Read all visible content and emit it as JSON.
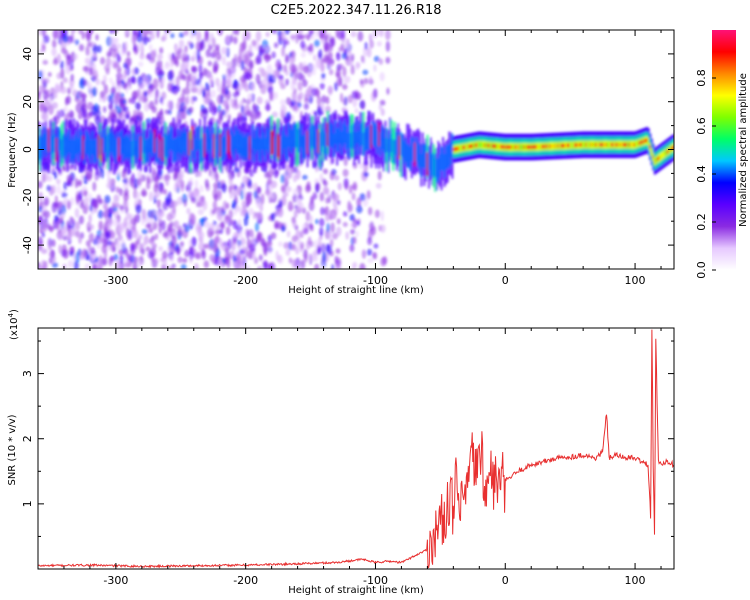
{
  "title": "C2E5.2022.347.11.26.R18",
  "chart_data": [
    {
      "type": "heatmap",
      "xlabel": "Height of straight line (km)",
      "ylabel": "Frequency (Hz)",
      "xlim": [
        -360,
        130
      ],
      "ylim": [
        -50,
        50
      ],
      "xticks": [
        -300,
        -200,
        -100,
        0,
        100
      ],
      "yticks": [
        -40,
        -20,
        0,
        20,
        40
      ],
      "colorbar": {
        "label": "Normalized spectral amplitude",
        "range": [
          0,
          1
        ],
        "ticks": [
          "0.0",
          "0.2",
          "0.4",
          "0.6",
          "0.8"
        ],
        "stops": [
          "#ffffff",
          "#e6c8ff",
          "#8a2be2",
          "#5a00ff",
          "#0000ff",
          "#00c8ff",
          "#00ff66",
          "#7fff00",
          "#ffff00",
          "#ff8800",
          "#ff0000",
          "#ff1177"
        ]
      },
      "ridge": {
        "x": [
          -360,
          -300,
          -250,
          -200,
          -150,
          -120,
          -100,
          -80,
          -60,
          -50,
          -40,
          -20,
          0,
          20,
          60,
          100,
          110,
          115,
          130
        ],
        "y": [
          2,
          1,
          2,
          2,
          4,
          5,
          4,
          0,
          -5,
          -7,
          0,
          2,
          1,
          1,
          2,
          2,
          4,
          -5,
          1
        ]
      }
    },
    {
      "type": "line",
      "xlabel": "Height of straight line (km)",
      "ylabel": "SNR (10 * v/v)",
      "scale_label": "(x10",
      "scale_exp": "4",
      "scale_close": ")",
      "xlim": [
        -360,
        130
      ],
      "ylim": [
        0,
        3.7
      ],
      "xticks": [
        -300,
        -200,
        -100,
        0,
        100
      ],
      "yticks": [
        1,
        2,
        3
      ],
      "color": "#e83030",
      "x": [
        -360,
        -320,
        -280,
        -240,
        -200,
        -160,
        -130,
        -110,
        -100,
        -90,
        -80,
        -70,
        -60,
        -55,
        -50,
        -45,
        -42,
        -40,
        -38,
        -35,
        -30,
        -25,
        -20,
        -18,
        -15,
        -12,
        -10,
        -5,
        0,
        10,
        20,
        30,
        40,
        50,
        60,
        70,
        75,
        78,
        80,
        85,
        90,
        100,
        105,
        110,
        112,
        113,
        114,
        115,
        116,
        118,
        120,
        125,
        130
      ],
      "y": [
        0.05,
        0.06,
        0.04,
        0.05,
        0.06,
        0.08,
        0.1,
        0.15,
        0.1,
        0.12,
        0.1,
        0.2,
        0.3,
        0.5,
        0.7,
        0.9,
        1.3,
        0.6,
        1.5,
        0.8,
        1.2,
        1.7,
        1.5,
        1.9,
        1.0,
        1.6,
        1.35,
        1.3,
        1.35,
        1.5,
        1.6,
        1.65,
        1.7,
        1.72,
        1.75,
        1.7,
        1.8,
        2.4,
        1.7,
        1.75,
        1.72,
        1.7,
        1.65,
        1.6,
        0.8,
        3.7,
        1.6,
        0.5,
        3.5,
        1.65,
        1.62,
        1.65,
        1.6
      ]
    }
  ]
}
